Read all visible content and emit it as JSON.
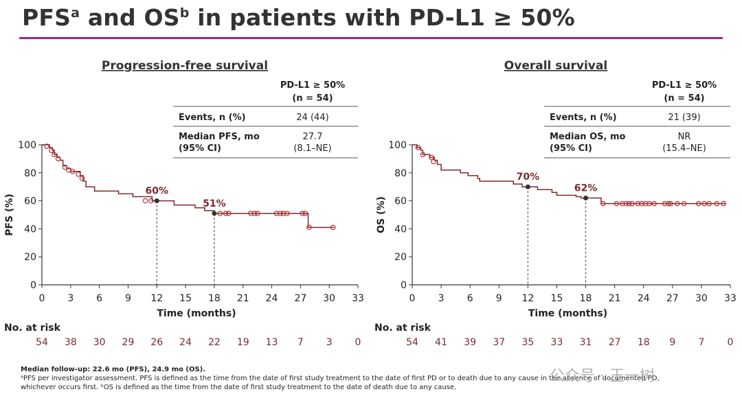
{
  "title": {
    "main_a": "PFS",
    "sup_a": "a",
    "mid": " and OS",
    "sup_b": "b",
    "tail": " in patients with PD-L1 ≥ 50%"
  },
  "footnote": {
    "line1": "Median follow-up: 22.6 mo (PFS), 24.9 mo (OS).",
    "line2": "ᵃPFS per investigator assessment. PFS is defined as the time from the date of first study treatment to the date of first PD or to death due to any cause in the absence of documented PD,",
    "line3": "whichever occurs first. ᵇOS is defined as the time from the date of first study treatment to the date of death due to any cause."
  },
  "watermark": "公众号 · 王一树",
  "colors": {
    "curve": "#7a2a2e",
    "marker": "#b5302f",
    "label": "#7a2a2e",
    "accent": "#a3238e"
  },
  "chart_data": [
    {
      "type": "line",
      "title": "Progression-free survival",
      "xlabel": "Time (months)",
      "ylabel": "PFS (%)",
      "xlim": [
        0,
        33
      ],
      "ylim": [
        0,
        100
      ],
      "xticks": [
        0,
        3,
        6,
        9,
        12,
        15,
        18,
        21,
        24,
        27,
        30,
        33
      ],
      "yticks": [
        0,
        20,
        40,
        60,
        80,
        100
      ],
      "table": {
        "header": "PD-L1 ≥ 50%",
        "header_n": "(n = 54)",
        "rows": [
          {
            "label": "Events, n (%)",
            "label2": "",
            "value": "24 (44)",
            "value2": ""
          },
          {
            "label": "Median PFS, mo",
            "label2": "(95% CI)",
            "value": "27.7",
            "value2": "(8.1–NE)"
          }
        ]
      },
      "annotations": [
        {
          "x": 12,
          "y": 60,
          "text": "60%"
        },
        {
          "x": 18,
          "y": 51,
          "text": "51%"
        }
      ],
      "steps": [
        [
          0,
          100
        ],
        [
          0.8,
          98
        ],
        [
          1.1,
          96
        ],
        [
          1.3,
          93
        ],
        [
          1.6,
          91
        ],
        [
          1.9,
          89
        ],
        [
          2.2,
          85
        ],
        [
          2.6,
          83
        ],
        [
          3.0,
          81
        ],
        [
          4.0,
          78
        ],
        [
          4.3,
          74
        ],
        [
          4.6,
          70
        ],
        [
          5.5,
          67
        ],
        [
          8.0,
          65
        ],
        [
          9.5,
          63
        ],
        [
          11.5,
          60
        ],
        [
          13.8,
          57
        ],
        [
          16.0,
          55
        ],
        [
          17.0,
          53
        ],
        [
          18.0,
          51
        ],
        [
          27.5,
          51
        ],
        [
          27.8,
          41
        ],
        [
          30.5,
          41
        ]
      ],
      "censored": [
        [
          0.5,
          99
        ],
        [
          1.0,
          96
        ],
        [
          1.3,
          93
        ],
        [
          1.7,
          90
        ],
        [
          2.4,
          84
        ],
        [
          2.8,
          82
        ],
        [
          3.2,
          81
        ],
        [
          3.8,
          79
        ],
        [
          4.2,
          76
        ],
        [
          10.8,
          60
        ],
        [
          11.4,
          60
        ],
        [
          18.6,
          51
        ],
        [
          19.2,
          51
        ],
        [
          19.5,
          51
        ],
        [
          21.8,
          51
        ],
        [
          22.2,
          51
        ],
        [
          22.5,
          51
        ],
        [
          24.5,
          51
        ],
        [
          24.9,
          51
        ],
        [
          25.2,
          51
        ],
        [
          25.6,
          51
        ],
        [
          27.2,
          51
        ],
        [
          27.5,
          51
        ],
        [
          27.9,
          41
        ],
        [
          30.4,
          41
        ]
      ],
      "points": [
        [
          12,
          60
        ],
        [
          18,
          51
        ]
      ],
      "at_risk": {
        "label": "No. at risk",
        "values": [
          54,
          38,
          30,
          29,
          26,
          24,
          22,
          19,
          13,
          7,
          3,
          0
        ]
      }
    },
    {
      "type": "line",
      "title": "Overall survival",
      "xlabel": "Time (months)",
      "ylabel": "OS (%)",
      "xlim": [
        0,
        33
      ],
      "ylim": [
        0,
        100
      ],
      "xticks": [
        0,
        3,
        6,
        9,
        12,
        15,
        18,
        21,
        24,
        27,
        30,
        33
      ],
      "yticks": [
        0,
        20,
        40,
        60,
        80,
        100
      ],
      "table": {
        "header": "PD-L1 ≥ 50%",
        "header_n": "(n = 54)",
        "rows": [
          {
            "label": "Events, n (%)",
            "label2": "",
            "value": "21 (39)",
            "value2": ""
          },
          {
            "label": "Median OS, mo",
            "label2": "(95% CI)",
            "value": "NR",
            "value2": "(15.4–NE)"
          }
        ]
      },
      "annotations": [
        {
          "x": 12,
          "y": 70,
          "text": "70%"
        },
        {
          "x": 18,
          "y": 62,
          "text": "62%"
        }
      ],
      "steps": [
        [
          0,
          100
        ],
        [
          0.5,
          98
        ],
        [
          0.9,
          96
        ],
        [
          1.1,
          93
        ],
        [
          1.8,
          91
        ],
        [
          2.3,
          89
        ],
        [
          2.6,
          86
        ],
        [
          3.0,
          82
        ],
        [
          5.0,
          80
        ],
        [
          5.8,
          78
        ],
        [
          6.8,
          76
        ],
        [
          7.0,
          74
        ],
        [
          10.5,
          72
        ],
        [
          11.4,
          70
        ],
        [
          13.0,
          68
        ],
        [
          14.5,
          66
        ],
        [
          15.0,
          64
        ],
        [
          17.0,
          63
        ],
        [
          17.5,
          62
        ],
        [
          19.6,
          58
        ],
        [
          32.5,
          58
        ]
      ],
      "censored": [
        [
          0.6,
          98
        ],
        [
          1.1,
          93
        ],
        [
          2.0,
          91
        ],
        [
          2.2,
          88
        ],
        [
          19.8,
          58
        ],
        [
          21.2,
          58
        ],
        [
          21.8,
          58
        ],
        [
          22.2,
          58
        ],
        [
          22.5,
          58
        ],
        [
          22.8,
          58
        ],
        [
          23.4,
          58
        ],
        [
          23.8,
          58
        ],
        [
          24.2,
          58
        ],
        [
          24.6,
          58
        ],
        [
          25.1,
          58
        ],
        [
          26.2,
          58
        ],
        [
          26.6,
          58
        ],
        [
          26.8,
          58
        ],
        [
          27.5,
          58
        ],
        [
          28.2,
          58
        ],
        [
          29.7,
          58
        ],
        [
          30.3,
          58
        ],
        [
          30.8,
          58
        ],
        [
          31.6,
          58
        ],
        [
          32.3,
          58
        ]
      ],
      "points": [
        [
          12,
          70
        ],
        [
          18,
          62
        ]
      ],
      "at_risk": {
        "label": "No. at risk",
        "values": [
          54,
          41,
          39,
          37,
          35,
          33,
          31,
          27,
          18,
          9,
          7,
          0
        ]
      }
    }
  ]
}
